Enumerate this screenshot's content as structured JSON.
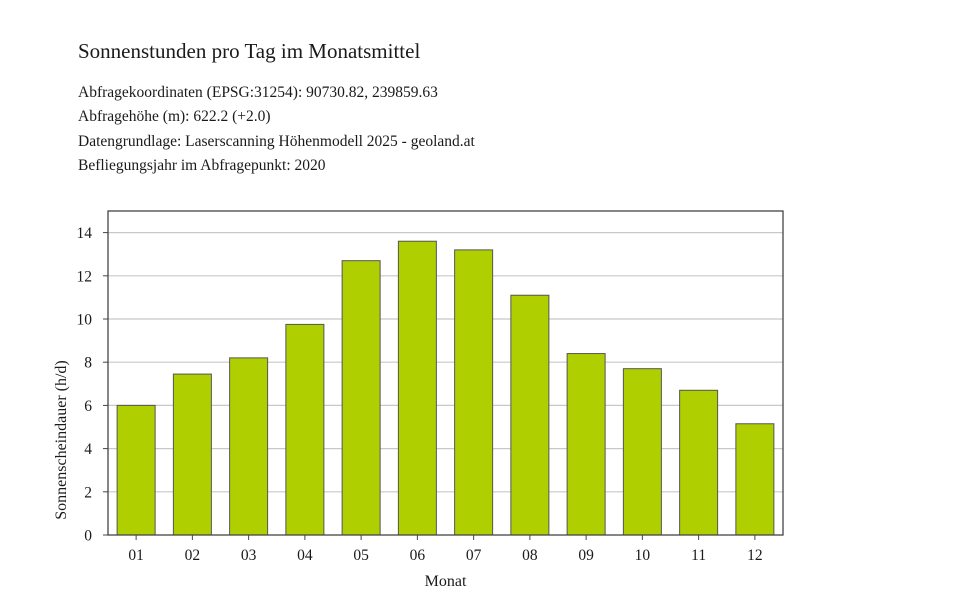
{
  "title": "Sonnenstunden pro Tag im Monatsmittel",
  "info_lines": [
    "Abfragekoordinaten (EPSG:31254): 90730.82, 239859.63",
    "Abfragehöhe (m): 622.2 (+2.0)",
    "Datengrundlage: Laserscanning Höhenmodell 2025 - geoland.at",
    "Befliegungsjahr im Abfragepunkt: 2020"
  ],
  "chart_data": {
    "type": "bar",
    "categories": [
      "01",
      "02",
      "03",
      "04",
      "05",
      "06",
      "07",
      "08",
      "09",
      "10",
      "11",
      "12"
    ],
    "values": [
      6.0,
      7.45,
      8.2,
      9.75,
      12.7,
      13.6,
      13.2,
      11.1,
      8.4,
      7.7,
      6.7,
      5.15
    ],
    "xlabel": "Monat",
    "ylabel": "Sonnenscheindauer (h/d)",
    "ylim": [
      0,
      15
    ],
    "yticks": [
      0,
      2,
      4,
      6,
      8,
      10,
      12,
      14
    ],
    "grid": true,
    "legend": "none",
    "bar_color": "#b0cf00",
    "bar_edge_color": "#555555",
    "grid_color": "#c8c8c8"
  }
}
